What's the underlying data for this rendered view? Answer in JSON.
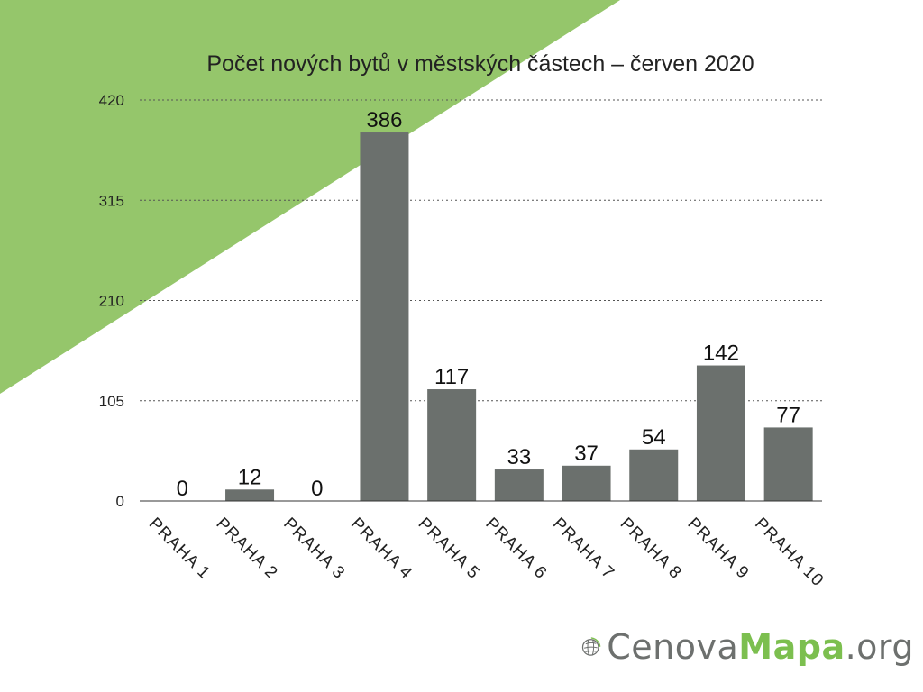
{
  "chart_data": {
    "type": "bar",
    "title": "Počet nových bytů v městských částech – červen 2020",
    "xlabel": "",
    "ylabel": "",
    "categories": [
      "PRAHA 1",
      "PRAHA 2",
      "PRAHA 3",
      "PRAHA 4",
      "PRAHA 5",
      "PRAHA 6",
      "PRAHA 7",
      "PRAHA 8",
      "PRAHA 9",
      "PRAHA 10"
    ],
    "values": [
      0,
      12,
      0,
      386,
      117,
      33,
      37,
      54,
      142,
      77
    ],
    "data_labels": [
      "0",
      "12",
      "0",
      "386",
      "117",
      "33",
      "37",
      "54",
      "142",
      "77"
    ],
    "yticks": [
      "0",
      "105",
      "210",
      "315",
      "420"
    ],
    "ylim": [
      0,
      420
    ],
    "grid": "horizontal dotted",
    "bar_color": "#6b706d"
  },
  "background": {
    "accent_color": "#95c66b"
  },
  "logo": {
    "part1": "Cenova",
    "part2": "Mapa",
    "part3": ".org",
    "icon": "globe-icon",
    "color_gray": "#6d706e",
    "color_green": "#7cbf4f"
  }
}
